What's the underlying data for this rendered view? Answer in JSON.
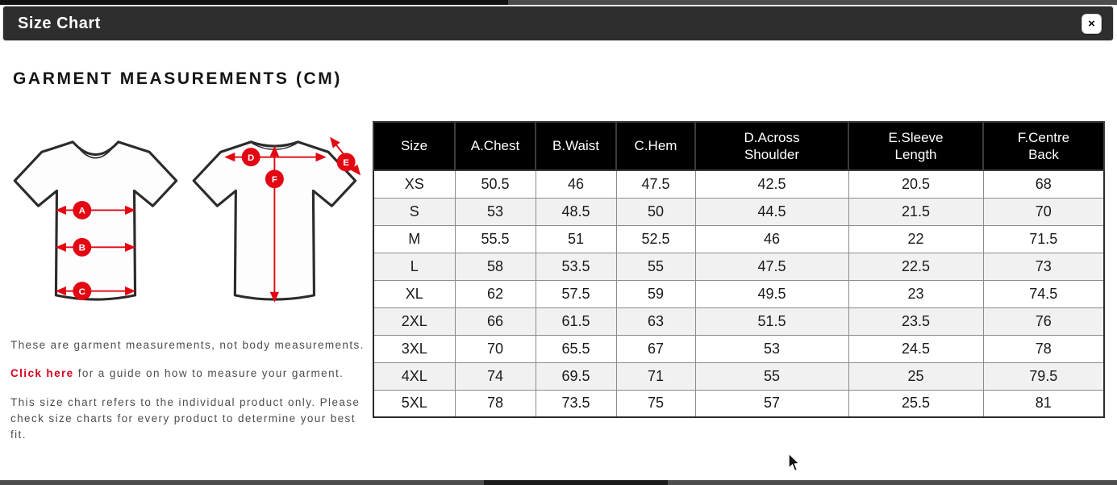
{
  "modal": {
    "title": "Size Chart",
    "close_label": "×"
  },
  "heading": "GARMENT MEASUREMENTS (CM)",
  "diagram": {
    "front_labels": [
      "A",
      "B",
      "C"
    ],
    "back_labels": [
      "D",
      "E",
      "F"
    ]
  },
  "notes": {
    "note1": "These are garment measurements, not body measurements.",
    "link_text": "Click here",
    "note2_rest": " for a guide on how to measure your garment.",
    "note3": "This size chart refers to the individual product only. Please check size charts for every product to determine your best fit."
  },
  "table": {
    "headers": [
      "Size",
      "A.Chest",
      "B.Waist",
      "C.Hem",
      "D.Across\nShoulder",
      "E.Sleeve\nLength",
      "F.Centre\nBack"
    ],
    "rows": [
      [
        "XS",
        "50.5",
        "46",
        "47.5",
        "42.5",
        "20.5",
        "68"
      ],
      [
        "S",
        "53",
        "48.5",
        "50",
        "44.5",
        "21.5",
        "70"
      ],
      [
        "M",
        "55.5",
        "51",
        "52.5",
        "46",
        "22",
        "71.5"
      ],
      [
        "L",
        "58",
        "53.5",
        "55",
        "47.5",
        "22.5",
        "73"
      ],
      [
        "XL",
        "62",
        "57.5",
        "59",
        "49.5",
        "23",
        "74.5"
      ],
      [
        "2XL",
        "66",
        "61.5",
        "63",
        "51.5",
        "23.5",
        "76"
      ],
      [
        "3XL",
        "70",
        "65.5",
        "67",
        "53",
        "24.5",
        "78"
      ],
      [
        "4XL",
        "74",
        "69.5",
        "71",
        "55",
        "25",
        "79.5"
      ],
      [
        "5XL",
        "78",
        "73.5",
        "75",
        "57",
        "25.5",
        "81"
      ]
    ]
  },
  "colors": {
    "accent_red": "#e30613",
    "modal_header_bg": "#2e2e2e",
    "table_header_bg": "#000000",
    "row_stripe": "#f1f1f1"
  }
}
